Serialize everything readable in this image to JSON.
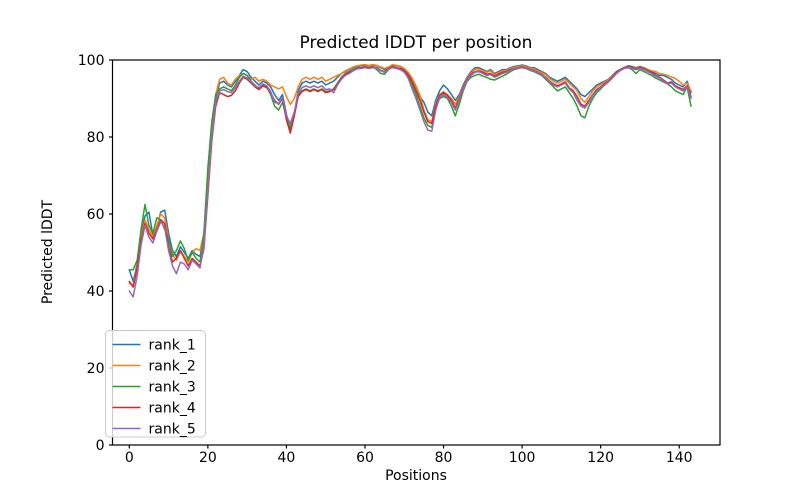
{
  "chart_data": {
    "type": "line",
    "title": "Predicted lDDT per position",
    "xlabel": "Positions",
    "ylabel": "Predicted lDDT",
    "xlim": [
      -7,
      150
    ],
    "ylim": [
      0,
      100
    ],
    "x_ticks": [
      0,
      20,
      40,
      60,
      80,
      100,
      120,
      140
    ],
    "y_ticks": [
      0,
      20,
      40,
      60,
      80,
      100
    ],
    "grid": false,
    "legend_position": "lower left",
    "x_start": 0,
    "x_step": 1,
    "series": [
      {
        "name": "rank_1",
        "color": "#1f77b4",
        "values": [
          45.5,
          42.5,
          47.0,
          55.0,
          59.5,
          60.5,
          54.5,
          56.5,
          60.5,
          61.0,
          55.0,
          50.5,
          49.0,
          51.5,
          50.0,
          48.5,
          50.5,
          49.5,
          49.0,
          54.0,
          68.0,
          81.0,
          90.0,
          94.0,
          94.5,
          93.5,
          93.0,
          94.5,
          96.0,
          97.5,
          97.0,
          95.5,
          94.5,
          93.5,
          94.5,
          94.0,
          93.0,
          91.0,
          89.5,
          91.0,
          86.0,
          81.5,
          86.0,
          92.0,
          94.0,
          94.5,
          94.0,
          94.5,
          94.0,
          94.5,
          93.5,
          94.0,
          94.5,
          95.5,
          96.5,
          97.0,
          97.5,
          98.0,
          98.3,
          98.5,
          98.7,
          98.5,
          98.7,
          98.5,
          98.0,
          97.5,
          98.0,
          98.7,
          98.5,
          98.3,
          97.5,
          96.5,
          95.0,
          93.0,
          90.5,
          89.0,
          86.5,
          85.5,
          89.5,
          92.0,
          93.5,
          92.5,
          91.0,
          89.5,
          91.0,
          93.5,
          95.5,
          97.0,
          98.0,
          98.0,
          97.5,
          97.0,
          97.5,
          96.5,
          97.0,
          97.5,
          97.5,
          98.0,
          98.3,
          98.5,
          98.7,
          98.5,
          98.0,
          98.0,
          97.5,
          97.0,
          96.5,
          95.5,
          95.0,
          94.5,
          95.0,
          95.5,
          94.5,
          93.5,
          92.5,
          91.0,
          90.5,
          91.5,
          92.5,
          93.5,
          94.0,
          94.5,
          95.0,
          96.0,
          97.0,
          97.5,
          98.0,
          98.5,
          98.3,
          98.0,
          98.3,
          98.0,
          97.5,
          97.0,
          96.5,
          96.0,
          96.0,
          95.5,
          95.0,
          94.0,
          93.5,
          93.0,
          94.5,
          91.5
        ]
      },
      {
        "name": "rank_2",
        "color": "#ff7f0e",
        "values": [
          42.0,
          41.5,
          46.5,
          54.0,
          58.5,
          56.0,
          54.0,
          57.0,
          60.0,
          59.0,
          53.5,
          49.5,
          48.0,
          50.5,
          49.0,
          47.5,
          50.0,
          51.0,
          50.5,
          55.0,
          69.0,
          82.0,
          91.0,
          95.0,
          95.5,
          94.0,
          93.5,
          95.0,
          96.0,
          96.5,
          96.0,
          95.0,
          95.5,
          94.5,
          95.0,
          94.5,
          93.5,
          93.0,
          92.5,
          93.0,
          90.5,
          88.5,
          90.0,
          93.0,
          95.0,
          95.5,
          95.0,
          95.5,
          95.0,
          95.5,
          94.5,
          95.0,
          95.5,
          96.0,
          96.5,
          97.2,
          97.7,
          98.2,
          98.5,
          98.7,
          98.8,
          98.6,
          98.8,
          98.6,
          98.2,
          97.8,
          98.2,
          98.8,
          98.6,
          98.4,
          97.8,
          96.8,
          95.3,
          93.3,
          90.8,
          87.0,
          84.5,
          84.0,
          88.5,
          91.0,
          91.8,
          91.0,
          90.0,
          88.5,
          90.5,
          93.0,
          95.2,
          96.6,
          97.6,
          97.7,
          97.2,
          96.8,
          97.2,
          96.2,
          96.7,
          97.2,
          97.3,
          97.8,
          98.1,
          98.3,
          98.5,
          98.3,
          97.8,
          97.7,
          97.2,
          96.7,
          96.2,
          95.2,
          94.5,
          94.0,
          94.5,
          95.0,
          94.0,
          93.0,
          92.0,
          90.0,
          89.0,
          90.5,
          92.0,
          93.0,
          93.6,
          94.2,
          94.8,
          95.8,
          96.8,
          97.4,
          97.9,
          98.3,
          98.1,
          97.9,
          98.1,
          97.9,
          97.5,
          97.2,
          97.0,
          96.5,
          96.3,
          96.0,
          95.6,
          95.2,
          94.5,
          93.5,
          94.0,
          92.0
        ]
      },
      {
        "name": "rank_3",
        "color": "#2ca02c",
        "values": [
          45.5,
          45.5,
          48.0,
          56.0,
          62.5,
          57.0,
          55.0,
          59.0,
          58.5,
          56.0,
          53.5,
          49.0,
          50.5,
          53.0,
          51.0,
          48.0,
          50.0,
          48.5,
          47.5,
          55.0,
          72.0,
          84.0,
          91.0,
          92.5,
          93.0,
          92.5,
          92.0,
          93.5,
          95.5,
          96.5,
          96.0,
          94.5,
          93.5,
          92.5,
          93.5,
          93.0,
          91.0,
          88.0,
          87.0,
          89.0,
          85.0,
          82.5,
          86.0,
          91.0,
          92.0,
          92.5,
          92.0,
          92.5,
          92.0,
          92.5,
          91.8,
          92.0,
          92.5,
          94.0,
          95.5,
          96.5,
          97.0,
          97.5,
          98.0,
          98.0,
          98.3,
          98.0,
          98.3,
          97.5,
          96.5,
          96.3,
          97.5,
          98.3,
          98.0,
          97.5,
          97.0,
          95.5,
          93.5,
          91.0,
          88.0,
          85.0,
          83.0,
          82.5,
          87.5,
          90.0,
          90.5,
          90.0,
          88.0,
          85.5,
          88.5,
          92.0,
          94.5,
          95.5,
          96.0,
          96.3,
          95.8,
          95.5,
          95.0,
          94.8,
          95.3,
          95.8,
          96.3,
          97.0,
          97.5,
          97.8,
          98.0,
          97.8,
          97.3,
          97.0,
          96.5,
          96.0,
          95.0,
          94.0,
          93.0,
          92.0,
          92.5,
          93.0,
          91.5,
          90.0,
          88.0,
          85.5,
          85.0,
          88.0,
          90.0,
          91.5,
          92.5,
          93.5,
          94.5,
          95.5,
          96.5,
          97.3,
          97.8,
          98.0,
          97.5,
          96.5,
          97.5,
          97.0,
          96.5,
          96.0,
          95.3,
          94.8,
          94.3,
          93.8,
          93.0,
          92.0,
          91.5,
          91.0,
          93.0,
          88.0
        ]
      },
      {
        "name": "rank_4",
        "color": "#d62728",
        "values": [
          42.5,
          41.0,
          46.0,
          53.0,
          57.5,
          55.0,
          53.5,
          56.0,
          58.5,
          57.5,
          51.5,
          47.5,
          48.5,
          50.5,
          48.5,
          46.5,
          48.5,
          47.5,
          46.5,
          51.0,
          65.0,
          79.0,
          88.0,
          91.5,
          91.0,
          90.5,
          90.8,
          92.0,
          94.0,
          95.5,
          95.0,
          94.0,
          93.0,
          92.3,
          93.3,
          92.8,
          91.5,
          89.5,
          88.5,
          90.0,
          84.5,
          81.0,
          85.5,
          90.5,
          91.8,
          92.3,
          91.8,
          92.3,
          91.8,
          92.3,
          91.5,
          91.8,
          92.3,
          93.8,
          95.3,
          96.3,
          96.8,
          97.3,
          97.8,
          98.0,
          98.2,
          98.0,
          98.2,
          98.0,
          97.3,
          97.0,
          97.8,
          98.2,
          98.0,
          97.8,
          97.2,
          96.0,
          94.3,
          92.0,
          89.5,
          86.5,
          84.0,
          83.5,
          88.0,
          90.8,
          91.5,
          90.8,
          89.5,
          87.5,
          90.0,
          92.8,
          95.0,
          96.3,
          97.0,
          97.2,
          96.8,
          96.3,
          96.5,
          95.8,
          96.3,
          96.8,
          97.0,
          97.5,
          97.8,
          98.0,
          98.2,
          98.0,
          97.5,
          97.3,
          96.8,
          96.3,
          95.5,
          94.5,
          93.8,
          93.3,
          93.8,
          94.3,
          92.8,
          92.0,
          90.5,
          88.5,
          88.0,
          89.5,
          91.0,
          92.3,
          93.0,
          93.8,
          94.5,
          95.5,
          96.8,
          97.5,
          98.0,
          98.3,
          98.0,
          97.8,
          98.0,
          97.8,
          97.3,
          96.8,
          96.0,
          95.5,
          94.8,
          94.0,
          94.3,
          93.3,
          92.8,
          92.3,
          93.3,
          90.5
        ]
      },
      {
        "name": "rank_5",
        "color": "#9467bd",
        "values": [
          40.0,
          38.5,
          44.0,
          52.0,
          57.0,
          54.0,
          52.5,
          55.5,
          58.0,
          56.5,
          50.5,
          46.5,
          44.5,
          47.5,
          47.0,
          45.5,
          48.0,
          47.0,
          46.0,
          52.0,
          66.0,
          80.0,
          89.0,
          92.0,
          92.3,
          91.8,
          91.5,
          92.8,
          94.5,
          95.8,
          95.3,
          94.3,
          93.3,
          92.8,
          93.8,
          93.3,
          91.8,
          89.0,
          88.7,
          90.3,
          85.5,
          83.5,
          86.5,
          91.3,
          92.8,
          93.3,
          92.8,
          93.3,
          92.8,
          93.3,
          92.3,
          92.5,
          91.5,
          93.5,
          95.0,
          96.0,
          96.5,
          97.2,
          97.7,
          97.8,
          98.0,
          97.8,
          98.0,
          97.8,
          97.2,
          96.8,
          97.7,
          98.0,
          97.8,
          97.5,
          96.8,
          95.3,
          92.5,
          90.0,
          87.0,
          84.0,
          81.8,
          81.5,
          87.0,
          90.3,
          91.0,
          90.3,
          89.0,
          87.0,
          89.5,
          92.5,
          94.8,
          96.0,
          96.8,
          97.0,
          96.5,
          96.0,
          96.2,
          95.5,
          96.0,
          96.5,
          96.8,
          97.3,
          97.7,
          97.9,
          98.1,
          97.9,
          97.4,
          97.2,
          96.7,
          96.2,
          95.3,
          94.3,
          93.5,
          93.0,
          93.5,
          94.0,
          92.5,
          91.5,
          89.5,
          88.0,
          87.5,
          89.0,
          90.8,
          92.0,
          92.8,
          93.5,
          94.3,
          95.3,
          96.5,
          97.3,
          97.8,
          98.1,
          97.8,
          97.5,
          97.8,
          97.5,
          97.0,
          96.5,
          95.8,
          95.3,
          94.5,
          93.8,
          94.0,
          93.0,
          92.5,
          92.0,
          93.0,
          90.0
        ]
      }
    ],
    "colors": {
      "spine": "#000000",
      "background": "#ffffff",
      "legend_border": "#cccccc"
    }
  }
}
